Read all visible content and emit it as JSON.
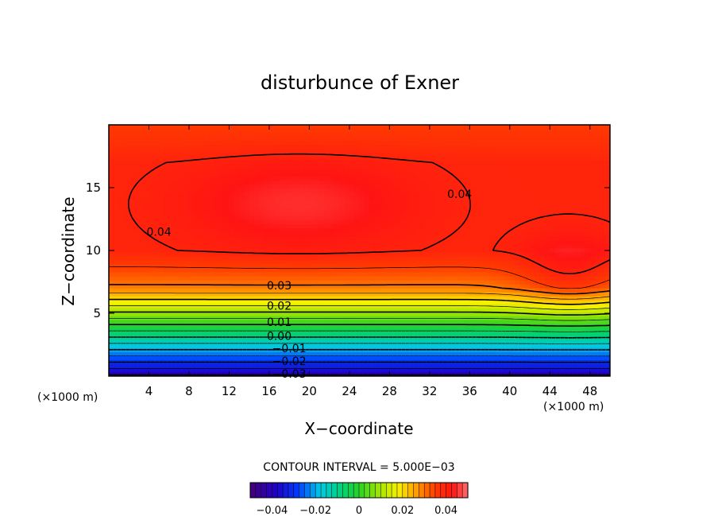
{
  "chart_data": {
    "type": "contour",
    "title": "disturbunce of Exner",
    "xlabel": "X−coordinate",
    "ylabel": "Z−coordinate",
    "x_unit": "(×1000 m)",
    "y_unit": "(×1000 m)",
    "xlim": [
      0,
      50
    ],
    "ylim": [
      0,
      20
    ],
    "x_ticks": [
      4,
      8,
      12,
      16,
      20,
      24,
      28,
      32,
      36,
      40,
      44,
      48
    ],
    "y_ticks": [
      5,
      10,
      15
    ],
    "contour_interval_text": "CONTOUR INTERVAL = 5.000E−03",
    "contour_interval": 0.005,
    "labeled_contours": [
      {
        "label": "0.04",
        "x": 5,
        "z": 11.5
      },
      {
        "label": "0.04",
        "x": 35,
        "z": 14.5
      },
      {
        "label": "0.03",
        "x": 17,
        "z": 7.2
      },
      {
        "label": "0.02",
        "x": 17,
        "z": 5.6
      },
      {
        "label": "0.01",
        "x": 17,
        "z": 4.3
      },
      {
        "label": "0.00",
        "x": 17,
        "z": 3.2
      },
      {
        "label": "−0.01",
        "x": 18,
        "z": 2.2
      },
      {
        "label": "−0.02",
        "x": 18,
        "z": 1.2
      },
      {
        "label": "−0.03",
        "x": 18,
        "z": 0.2
      }
    ],
    "field_summary": {
      "min": -0.04,
      "max": 0.045,
      "maximum_location": {
        "x": 18,
        "z": 14
      }
    },
    "colorbar": {
      "range": [
        -0.05,
        0.05
      ],
      "ticks": [
        {
          "value": -0.04,
          "label": "−0.04"
        },
        {
          "value": -0.02,
          "label": "−0.02"
        },
        {
          "value": 0,
          "label": "0"
        },
        {
          "value": 0.02,
          "label": "0.02"
        },
        {
          "value": 0.04,
          "label": "0.04"
        }
      ]
    }
  }
}
